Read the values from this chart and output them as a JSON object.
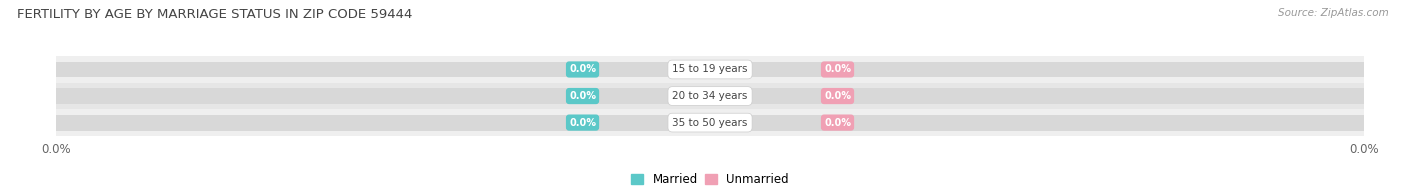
{
  "title": "FERTILITY BY AGE BY MARRIAGE STATUS IN ZIP CODE 59444",
  "source": "Source: ZipAtlas.com",
  "categories": [
    "15 to 19 years",
    "20 to 34 years",
    "35 to 50 years"
  ],
  "married_values": [
    0.0,
    0.0,
    0.0
  ],
  "unmarried_values": [
    0.0,
    0.0,
    0.0
  ],
  "married_color": "#5bc8c8",
  "unmarried_color": "#f0a0b4",
  "row_bg_colors": [
    "#efefef",
    "#e6e6e6",
    "#efefef"
  ],
  "bar_inner_color": "#d8d8d8",
  "label_color": "#666666",
  "title_color": "#444444",
  "xlim": [
    -1.0,
    1.0
  ],
  "background_color": "#ffffff",
  "tag_text_color": "#ffffff",
  "center_label_bg": "#ffffff",
  "center_label_color": "#444444",
  "source_color": "#999999"
}
